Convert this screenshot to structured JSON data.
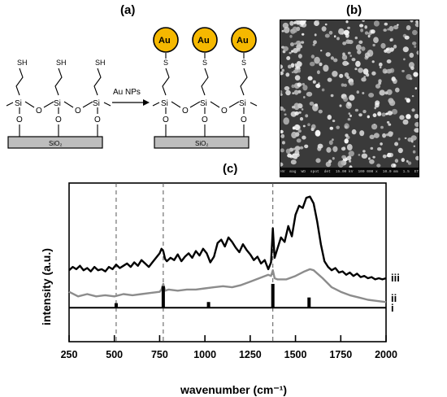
{
  "panels": {
    "a": "(a)",
    "b": "(b)",
    "c": "(c)"
  },
  "scheme": {
    "substrate_label": "SiO₂",
    "thiol_label": "SH",
    "bound_sulfur_label": "S",
    "silicon_label": "Si",
    "oxygen_label": "O",
    "arrow_label": "Au NPs",
    "nanoparticle_label": "Au",
    "colors": {
      "nanoparticle": "#f5b800",
      "substrate": "#bdbdbd"
    }
  },
  "sem": {
    "info_bar": [
      "HV",
      "mag",
      "WD",
      "spot",
      "det",
      "15.00 kV",
      "100 000 x",
      "10.0 mm",
      "1.5",
      "ETD",
      "1 µm",
      "MPMSI-4"
    ]
  },
  "chart_data": {
    "type": "line",
    "xlabel": "wavenumber (cm⁻¹)",
    "ylabel": "intensity (a.u.)",
    "xlim": [
      250,
      2000
    ],
    "xticks": [
      250,
      500,
      750,
      1000,
      1250,
      1500,
      1750,
      2000
    ],
    "dashed_lines_x": [
      510,
      770,
      1375
    ],
    "grid": false,
    "series": [
      {
        "name": "iii",
        "color": "#000000",
        "x": [
          250,
          270,
          290,
          310,
          330,
          350,
          370,
          390,
          410,
          430,
          450,
          470,
          490,
          510,
          530,
          550,
          570,
          590,
          610,
          630,
          650,
          670,
          690,
          710,
          730,
          750,
          760,
          770,
          780,
          790,
          810,
          830,
          850,
          870,
          890,
          910,
          930,
          950,
          970,
          990,
          1010,
          1030,
          1050,
          1070,
          1090,
          1110,
          1130,
          1150,
          1170,
          1190,
          1210,
          1230,
          1250,
          1270,
          1290,
          1310,
          1330,
          1350,
          1365,
          1375,
          1385,
          1400,
          1420,
          1440,
          1460,
          1480,
          1500,
          1520,
          1540,
          1560,
          1580,
          1600,
          1620,
          1640,
          1660,
          1680,
          1700,
          1720,
          1740,
          1760,
          1780,
          1800,
          1820,
          1840,
          1860,
          1880,
          1900,
          1920,
          1940,
          1960,
          1980,
          2000
        ],
        "values": [
          0.63,
          0.66,
          0.64,
          0.67,
          0.63,
          0.65,
          0.62,
          0.66,
          0.63,
          0.64,
          0.62,
          0.66,
          0.64,
          0.68,
          0.65,
          0.67,
          0.69,
          0.66,
          0.7,
          0.67,
          0.72,
          0.69,
          0.66,
          0.7,
          0.74,
          0.78,
          0.82,
          0.8,
          0.73,
          0.71,
          0.74,
          0.72,
          0.77,
          0.71,
          0.75,
          0.78,
          0.74,
          0.8,
          0.76,
          0.82,
          0.78,
          0.7,
          0.75,
          0.87,
          0.9,
          0.84,
          0.92,
          0.88,
          0.83,
          0.79,
          0.86,
          0.81,
          0.77,
          0.72,
          0.75,
          0.69,
          0.72,
          0.64,
          0.7,
          1.0,
          0.74,
          0.82,
          0.92,
          0.88,
          1.02,
          0.93,
          1.12,
          1.2,
          1.18,
          1.27,
          1.28,
          1.22,
          1.06,
          0.86,
          0.71,
          0.66,
          0.63,
          0.65,
          0.61,
          0.62,
          0.59,
          0.61,
          0.58,
          0.6,
          0.57,
          0.58,
          0.56,
          0.57,
          0.55,
          0.56,
          0.55,
          0.56
        ]
      },
      {
        "name": "ii",
        "color": "#8c8c8c",
        "x": [
          250,
          300,
          350,
          400,
          450,
          500,
          550,
          600,
          650,
          700,
          750,
          760,
          770,
          780,
          800,
          850,
          900,
          950,
          1000,
          1050,
          1100,
          1150,
          1200,
          1250,
          1300,
          1350,
          1365,
          1375,
          1385,
          1400,
          1450,
          1500,
          1550,
          1580,
          1600,
          1650,
          1700,
          1750,
          1800,
          1850,
          1900,
          1950,
          2000
        ],
        "values": [
          0.44,
          0.4,
          0.42,
          0.4,
          0.41,
          0.4,
          0.42,
          0.41,
          0.42,
          0.43,
          0.44,
          0.46,
          0.51,
          0.45,
          0.46,
          0.45,
          0.46,
          0.46,
          0.47,
          0.48,
          0.49,
          0.48,
          0.5,
          0.53,
          0.56,
          0.59,
          0.58,
          0.63,
          0.56,
          0.55,
          0.55,
          0.58,
          0.62,
          0.64,
          0.63,
          0.56,
          0.48,
          0.44,
          0.41,
          0.39,
          0.37,
          0.36,
          0.35
        ]
      },
      {
        "name": "i",
        "color": "#000000",
        "peaks": [
          {
            "x": 510,
            "height": 0.04
          },
          {
            "x": 770,
            "height": 0.19
          },
          {
            "x": 1020,
            "height": 0.05
          },
          {
            "x": 1375,
            "height": 0.21
          },
          {
            "x": 1575,
            "height": 0.09
          }
        ],
        "baseline": 0.3
      }
    ]
  }
}
